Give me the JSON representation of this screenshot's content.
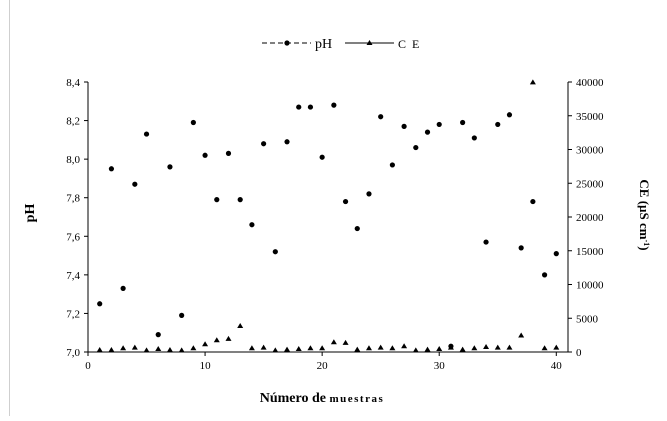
{
  "chart_data": {
    "type": "scatter",
    "xlabel_main": "Número de",
    "xlabel_small": "muestras",
    "ylabel_left": "pH",
    "ylabel_right_base": "CE (µS cm",
    "ylabel_right_sup": "-1",
    "ylabel_right_close": ")",
    "x_ticks": [
      "0",
      "10",
      "20",
      "30",
      "40"
    ],
    "x_range": [
      0,
      41
    ],
    "y_left_ticks": [
      "7,0",
      "7,2",
      "7,4",
      "7,6",
      "7,8",
      "8,0",
      "8,2",
      "8,4"
    ],
    "y_left_range": [
      7.0,
      8.4
    ],
    "y_right_ticks": [
      "0",
      "5000",
      "10000",
      "15000",
      "20000",
      "25000",
      "30000",
      "35000",
      "40000"
    ],
    "y_right_range": [
      0,
      40000
    ],
    "legend_position": "top-center",
    "series": [
      {
        "name": "pH",
        "axis": "left",
        "legend_style": "dashed line with circle marker",
        "marker": "circle",
        "points": [
          [
            1,
            7.25
          ],
          [
            2,
            7.95
          ],
          [
            3,
            7.33
          ],
          [
            4,
            7.87
          ],
          [
            5,
            8.13
          ],
          [
            6,
            7.09
          ],
          [
            7,
            7.96
          ],
          [
            8,
            7.19
          ],
          [
            9,
            8.19
          ],
          [
            10,
            8.02
          ],
          [
            11,
            7.79
          ],
          [
            12,
            8.03
          ],
          [
            13,
            7.79
          ],
          [
            14,
            7.66
          ],
          [
            15,
            8.08
          ],
          [
            16,
            7.52
          ],
          [
            17,
            8.09
          ],
          [
            18,
            8.27
          ],
          [
            19,
            8.27
          ],
          [
            20,
            8.01
          ],
          [
            21,
            8.28
          ],
          [
            22,
            7.78
          ],
          [
            23,
            7.64
          ],
          [
            24,
            7.82
          ],
          [
            25,
            8.22
          ],
          [
            26,
            7.97
          ],
          [
            27,
            8.17
          ],
          [
            28,
            8.06
          ],
          [
            29,
            8.14
          ],
          [
            30,
            8.18
          ],
          [
            31,
            7.03
          ],
          [
            32,
            8.19
          ],
          [
            33,
            8.11
          ],
          [
            34,
            7.57
          ],
          [
            35,
            8.18
          ],
          [
            36,
            8.23
          ],
          [
            37,
            7.54
          ],
          [
            38,
            7.78
          ],
          [
            39,
            7.4
          ],
          [
            40,
            7.51
          ]
        ]
      },
      {
        "name": "C E",
        "axis": "right",
        "legend_style": "solid line with triangle marker",
        "marker": "triangle",
        "points": [
          [
            1,
            150
          ],
          [
            2,
            150
          ],
          [
            3,
            400
          ],
          [
            4,
            500
          ],
          [
            5,
            100
          ],
          [
            6,
            300
          ],
          [
            7,
            150
          ],
          [
            8,
            100
          ],
          [
            9,
            400
          ],
          [
            10,
            1000
          ],
          [
            11,
            1600
          ],
          [
            12,
            1800
          ],
          [
            13,
            3700
          ],
          [
            14,
            400
          ],
          [
            15,
            500
          ],
          [
            16,
            100
          ],
          [
            17,
            200
          ],
          [
            18,
            300
          ],
          [
            19,
            400
          ],
          [
            20,
            400
          ],
          [
            21,
            1300
          ],
          [
            22,
            1200
          ],
          [
            23,
            200
          ],
          [
            24,
            400
          ],
          [
            25,
            500
          ],
          [
            26,
            400
          ],
          [
            27,
            700
          ],
          [
            28,
            100
          ],
          [
            29,
            200
          ],
          [
            30,
            300
          ],
          [
            31,
            500
          ],
          [
            32,
            200
          ],
          [
            33,
            400
          ],
          [
            34,
            600
          ],
          [
            35,
            500
          ],
          [
            36,
            500
          ],
          [
            37,
            2300
          ],
          [
            38,
            39800
          ],
          [
            39,
            400
          ],
          [
            40,
            500
          ]
        ]
      }
    ]
  }
}
